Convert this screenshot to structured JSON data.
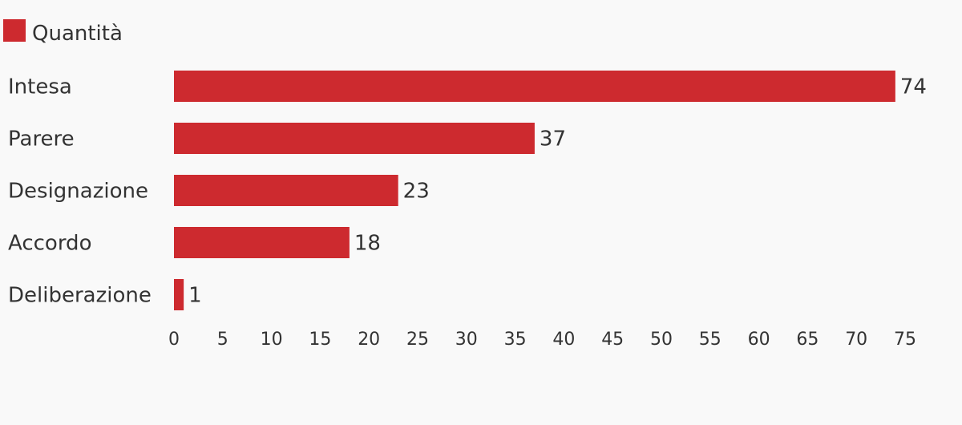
{
  "chart_data": {
    "type": "bar",
    "orientation": "horizontal",
    "categories": [
      "Intesa",
      "Parere",
      "Designazione",
      "Accordo",
      "Deliberazione"
    ],
    "series": [
      {
        "name": "Quantità",
        "values": [
          74,
          37,
          23,
          18,
          1
        ],
        "color": "#cd2a2f"
      }
    ],
    "xlim": [
      0,
      75
    ],
    "xticks": [
      0,
      5,
      10,
      15,
      20,
      25,
      30,
      35,
      40,
      45,
      50,
      55,
      60,
      65,
      70,
      75
    ],
    "grid": false,
    "legend_position": "top-left",
    "data_labels": true
  }
}
